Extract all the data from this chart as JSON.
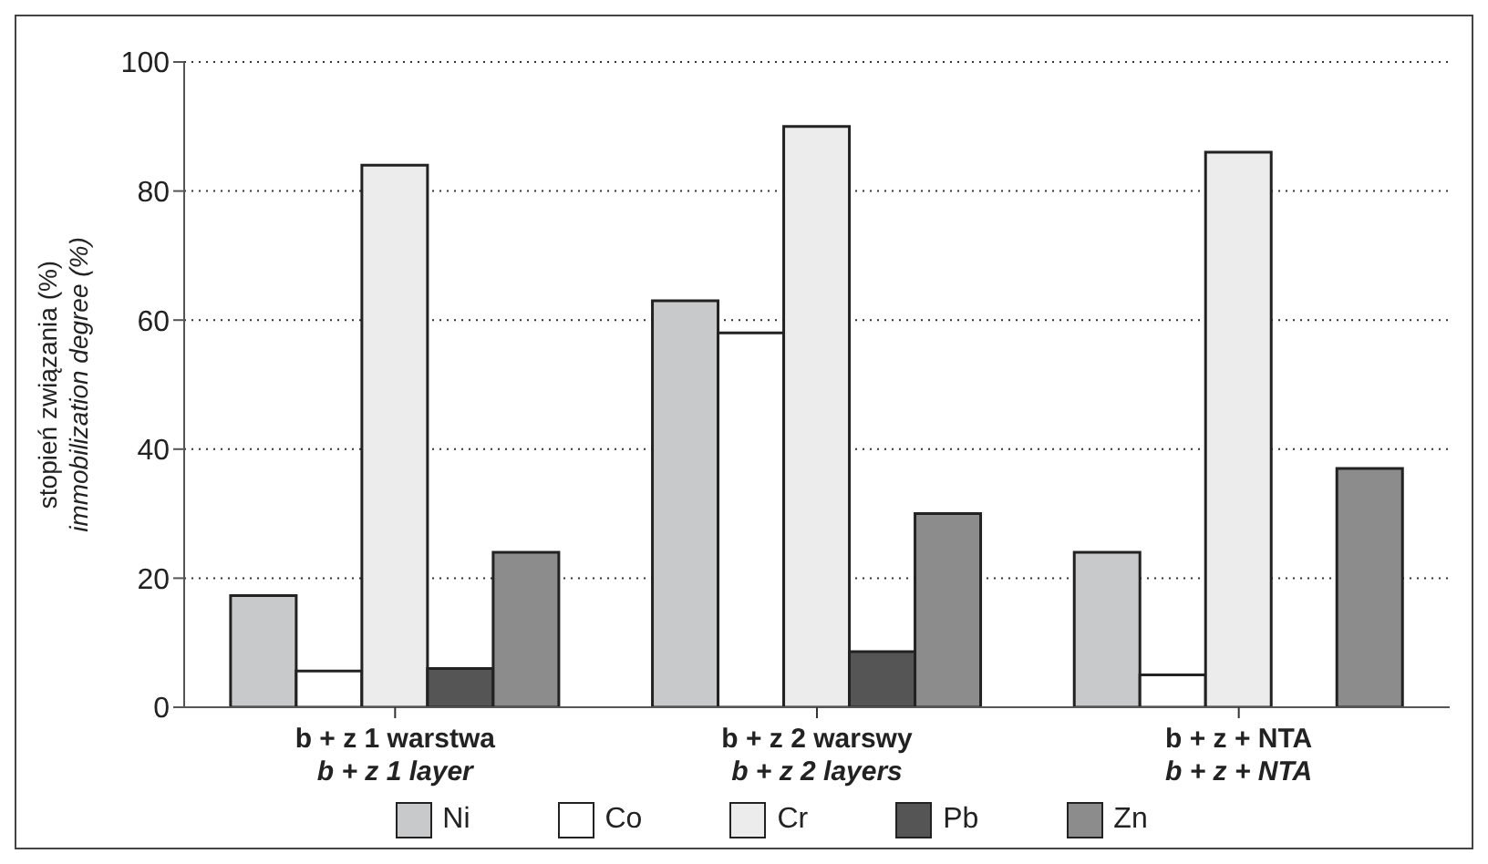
{
  "chart_data": {
    "type": "bar",
    "ylabel": "stopień związania (%)\nimmobilization degree (%)",
    "categories": [
      "b + z 1 warstwa\nb + z 1 layer",
      "b + z 2 warswy\nb + z 2 layers",
      "b + z + NTA\nb + z + NTA"
    ],
    "series": [
      {
        "name": "Ni",
        "color": "#c8c9cb",
        "values": [
          17.3,
          63,
          24
        ]
      },
      {
        "name": "Co",
        "color": "#ffffff",
        "values": [
          5.6,
          58,
          5
        ]
      },
      {
        "name": "Cr",
        "color": "#ececec",
        "values": [
          84,
          90,
          86
        ]
      },
      {
        "name": "Pb",
        "color": "#555555",
        "values": [
          6,
          8.6,
          null
        ]
      },
      {
        "name": "Zn",
        "color": "#8c8c8c",
        "values": [
          24,
          30,
          37
        ]
      }
    ],
    "ylim": [
      0,
      100
    ],
    "yticks": [
      0,
      20,
      40,
      60,
      80,
      100
    ],
    "grid": "y",
    "legend": "bottom"
  }
}
